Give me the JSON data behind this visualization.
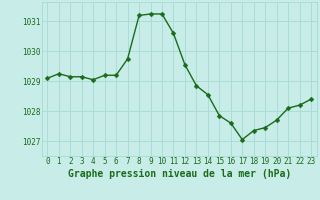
{
  "x": [
    0,
    1,
    2,
    3,
    4,
    5,
    6,
    7,
    8,
    9,
    10,
    11,
    12,
    13,
    14,
    15,
    16,
    17,
    18,
    19,
    20,
    21,
    22,
    23
  ],
  "y": [
    1029.1,
    1029.25,
    1029.15,
    1029.15,
    1029.05,
    1029.2,
    1029.2,
    1029.75,
    1031.2,
    1031.25,
    1031.25,
    1030.6,
    1029.55,
    1028.85,
    1028.55,
    1027.85,
    1027.6,
    1027.05,
    1027.35,
    1027.45,
    1027.7,
    1028.1,
    1028.2,
    1028.4
  ],
  "line_color": "#1a6b1a",
  "marker_color": "#1a6b1a",
  "bg_color": "#c8ede8",
  "grid_color": "#aaddd8",
  "xlabel": "Graphe pression niveau de la mer (hPa)",
  "xlabel_color": "#1a6b1a",
  "tick_color": "#1a6b1a",
  "ylim": [
    1026.5,
    1031.65
  ],
  "yticks": [
    1027,
    1028,
    1029,
    1030,
    1031
  ],
  "xticks": [
    0,
    1,
    2,
    3,
    4,
    5,
    6,
    7,
    8,
    9,
    10,
    11,
    12,
    13,
    14,
    15,
    16,
    17,
    18,
    19,
    20,
    21,
    22,
    23
  ],
  "marker_size": 2.5,
  "line_width": 1.0,
  "tick_fontsize": 5.5,
  "xlabel_fontsize": 7.0
}
